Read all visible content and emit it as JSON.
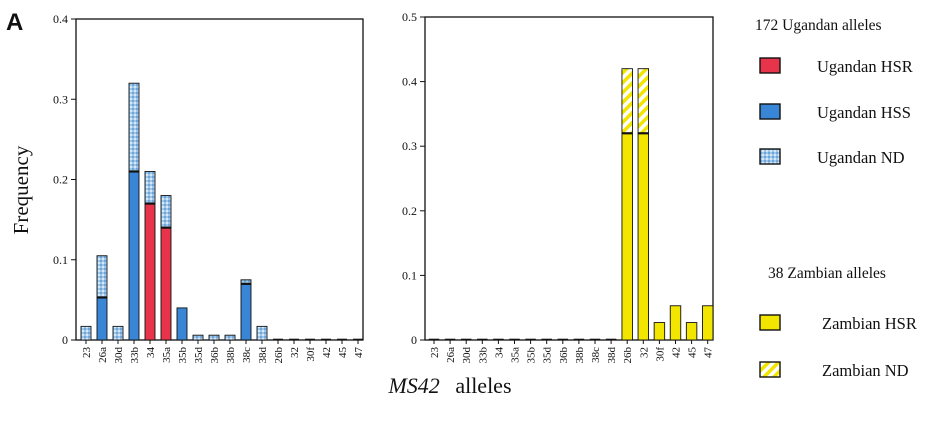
{
  "figure": {
    "panel_label": "A",
    "ylabel": "Frequency",
    "xlabel_italic": "MS42",
    "xlabel_rest": "alleles"
  },
  "legend": {
    "uganda_header": "172 Ugandan alleles",
    "uganda_items": [
      {
        "label": "Ugandan HSR",
        "color": "#e8344a",
        "pattern": "solid"
      },
      {
        "label": "Ugandan HSS",
        "color": "#3a86d6",
        "pattern": "solid"
      },
      {
        "label": "Ugandan ND",
        "color": "#9cc6ea",
        "pattern": "dotted"
      }
    ],
    "zambia_header": "38 Zambian alleles",
    "zambia_items": [
      {
        "label": "Zambian HSR",
        "color": "#f2e600",
        "pattern": "solid"
      },
      {
        "label": "Zambian ND",
        "color": "#f7ee55",
        "pattern": "striped"
      }
    ]
  },
  "chart_data": [
    {
      "type": "bar",
      "stacked": true,
      "title": "",
      "xlabel": "MS42 alleles",
      "ylabel": "Frequency",
      "ylim": [
        0,
        0.4
      ],
      "yticks": [
        "0",
        "0.1",
        "0.2",
        "0.3",
        "0.4"
      ],
      "ytick_values": [
        0,
        0.1,
        0.2,
        0.3,
        0.4
      ],
      "categories": [
        "23",
        "26a",
        "30d",
        "33b",
        "34",
        "35a",
        "35b",
        "35d",
        "36b",
        "38b",
        "38c",
        "38d",
        "26b",
        "32",
        "30f",
        "42",
        "45",
        "47"
      ],
      "series": [
        {
          "name": "Ugandan HSR",
          "color": "#e8344a",
          "pattern": "solid",
          "values": [
            0,
            0,
            0,
            0,
            0.17,
            0.14,
            0,
            0,
            0,
            0,
            0,
            0,
            0,
            0,
            0,
            0,
            0,
            0
          ]
        },
        {
          "name": "Ugandan HSS",
          "color": "#3a86d6",
          "pattern": "solid",
          "values": [
            0,
            0.053,
            0,
            0.21,
            0,
            0,
            0.04,
            0,
            0,
            0,
            0.07,
            0,
            0,
            0,
            0,
            0,
            0,
            0
          ]
        },
        {
          "name": "Ugandan ND",
          "color": "#9cc6ea",
          "pattern": "dotted",
          "values": [
            0.017,
            0.052,
            0.017,
            0.11,
            0.04,
            0.04,
            0,
            0.006,
            0.006,
            0.006,
            0.005,
            0.017,
            0,
            0,
            0,
            0,
            0,
            0
          ]
        }
      ]
    },
    {
      "type": "bar",
      "stacked": true,
      "title": "",
      "xlabel": "MS42 alleles",
      "ylabel": "",
      "ylim": [
        0,
        0.5
      ],
      "yticks": [
        "0",
        "0.1",
        "0.2",
        "0.3",
        "0.4",
        "0.5"
      ],
      "ytick_values": [
        0,
        0.1,
        0.2,
        0.3,
        0.4,
        0.5
      ],
      "categories": [
        "23",
        "26a",
        "30d",
        "33b",
        "34",
        "35a",
        "35b",
        "35d",
        "36b",
        "38b",
        "38c",
        "38d",
        "26b",
        "32",
        "30f",
        "42",
        "45",
        "47"
      ],
      "series": [
        {
          "name": "Zambian HSR",
          "color": "#f2e600",
          "pattern": "solid",
          "values": [
            0,
            0,
            0,
            0,
            0,
            0,
            0,
            0,
            0,
            0,
            0,
            0,
            0.32,
            0.32,
            0.027,
            0.053,
            0.027,
            0.053
          ]
        },
        {
          "name": "Zambian ND",
          "color": "#f7ee55",
          "pattern": "striped",
          "values": [
            0,
            0,
            0,
            0,
            0,
            0,
            0,
            0,
            0,
            0,
            0,
            0,
            0.1,
            0.1,
            0,
            0,
            0,
            0
          ]
        }
      ]
    }
  ]
}
